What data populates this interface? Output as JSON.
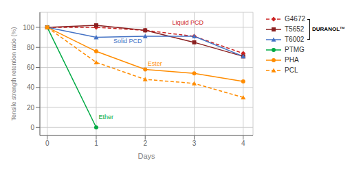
{
  "chart_data": {
    "type": "line",
    "x_label": "Days",
    "y_label": "Tensile strength retention ratio (%)",
    "x": [
      0,
      1,
      2,
      3,
      4
    ],
    "series": [
      {
        "name": "G4672",
        "color": "#cc2222",
        "line_style": "dashed",
        "marker": "diamond",
        "values": [
          100,
          100,
          97,
          91,
          74
        ]
      },
      {
        "name": "T5652",
        "color": "#8b2020",
        "line_style": "solid",
        "marker": "square",
        "values": [
          100,
          102,
          97,
          85,
          71
        ]
      },
      {
        "name": "T6002",
        "color": "#4472c4",
        "line_style": "solid",
        "marker": "triangle",
        "values": [
          100,
          90,
          91,
          91,
          71
        ]
      },
      {
        "name": "PTMG",
        "color": "#00aa44",
        "line_style": "solid",
        "marker": "circle",
        "values": [
          100,
          0,
          null,
          null,
          null
        ]
      },
      {
        "name": "PHA",
        "color": "#ff8c00",
        "line_style": "solid",
        "marker": "circle",
        "values": [
          100,
          76,
          58,
          54,
          46
        ]
      },
      {
        "name": "PCL",
        "color": "#ff8c00",
        "line_style": "dashed",
        "marker": "triangle",
        "values": [
          100,
          65,
          48,
          44,
          30
        ]
      }
    ],
    "xlim": [
      -0.15,
      4.2
    ],
    "xticks": [
      0,
      1,
      2,
      3,
      4
    ],
    "ylim": [
      -8,
      115
    ],
    "yticks": [
      0,
      20,
      40,
      60,
      80,
      100
    ],
    "grid": true,
    "legend": "right",
    "annotations": [
      {
        "text": "Ether",
        "x": 1.05,
        "y": 7,
        "color": "#00aa44"
      },
      {
        "text": "Ester",
        "x": 2.05,
        "y": 60,
        "color": "#ff8c00"
      },
      {
        "text": "Solid PCD",
        "x": 1.35,
        "y": 83,
        "color": "#4472c4"
      },
      {
        "text": "Liquid PCD",
        "x": 2.55,
        "y": 101,
        "color": "#cc2222"
      },
      {
        "text": "DURANOL™",
        "series": [
          "G4672",
          "T5652",
          "T6002"
        ]
      }
    ]
  }
}
